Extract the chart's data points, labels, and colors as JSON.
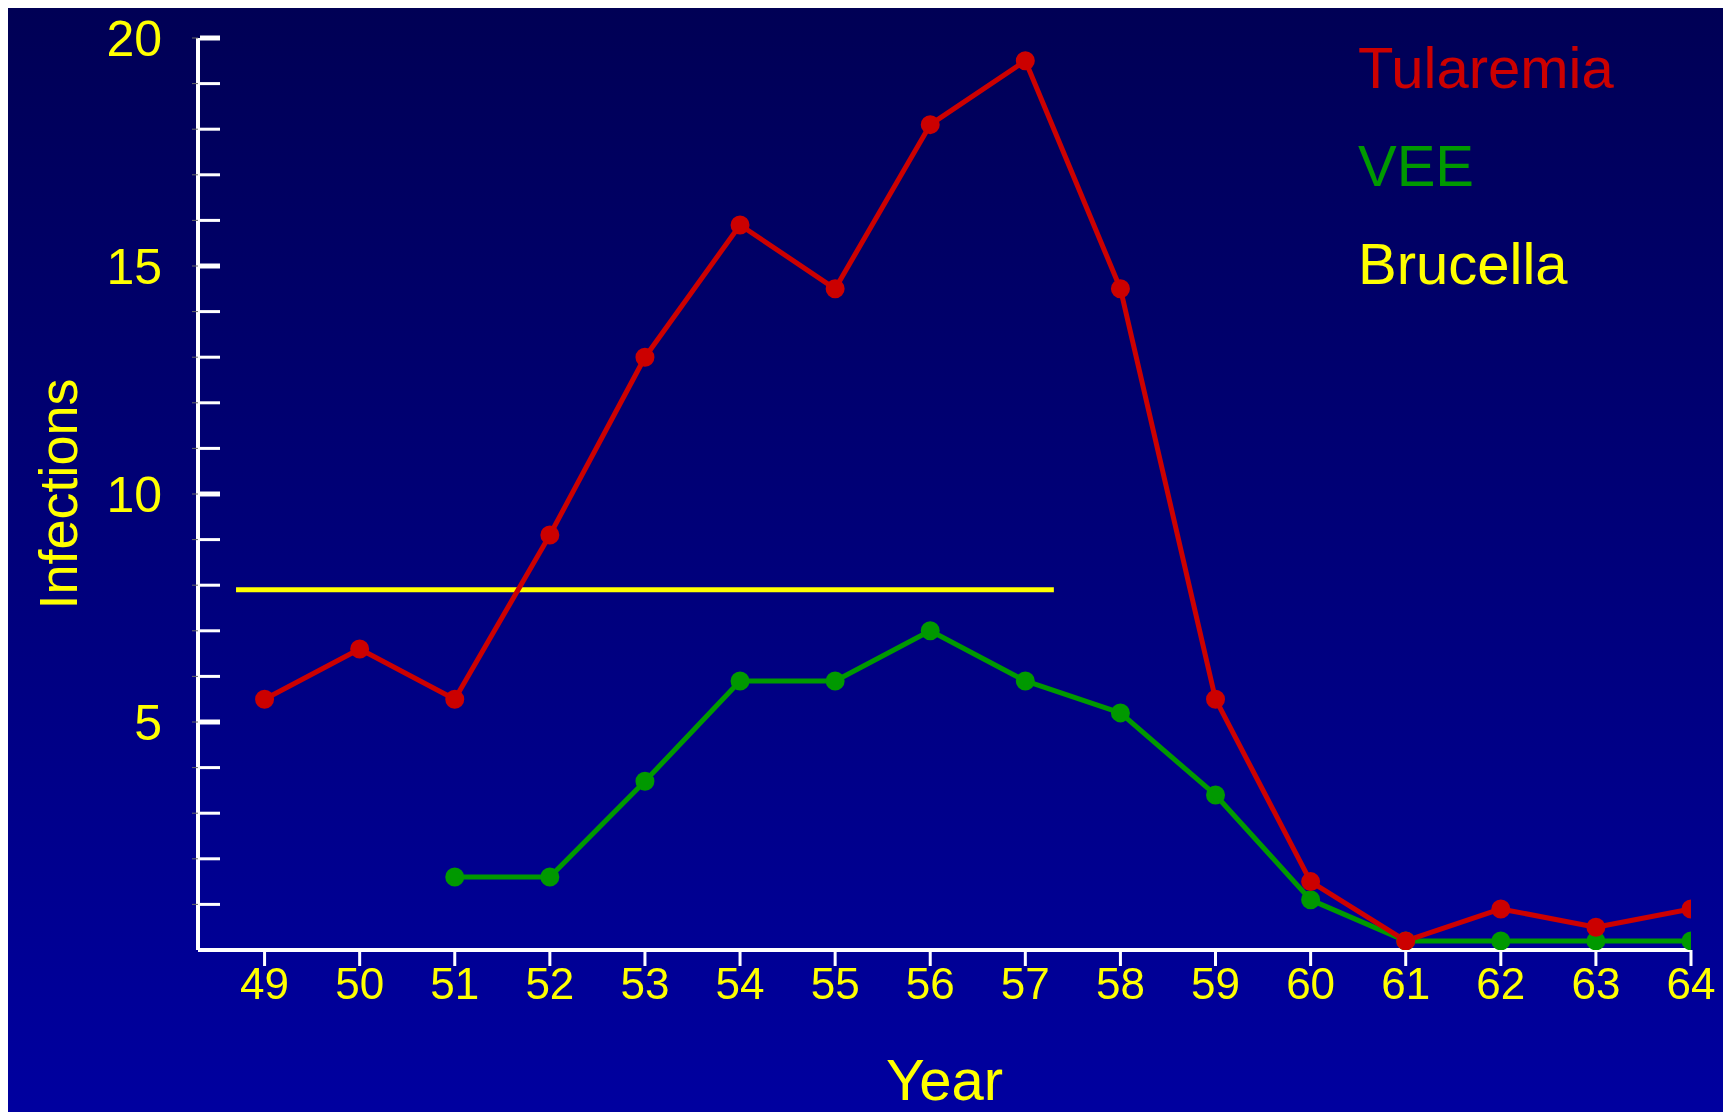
{
  "chart_data": {
    "type": "line",
    "xlabel": "Year",
    "ylabel": "Infections",
    "xlim": [
      48.3,
      64
    ],
    "xticks": [
      49,
      50,
      51,
      52,
      53,
      54,
      55,
      56,
      57,
      58,
      59,
      60,
      61,
      62,
      63,
      64
    ],
    "ylim": [
      0,
      20
    ],
    "yticks": [
      {
        "value": 1,
        "label": null
      },
      {
        "value": 2,
        "label": null
      },
      {
        "value": 3,
        "label": null
      },
      {
        "value": 4,
        "label": null
      },
      5,
      {
        "value": 6,
        "label": null
      },
      {
        "value": 7,
        "label": null
      },
      {
        "value": 8,
        "label": null
      },
      {
        "value": 9,
        "label": null
      },
      10,
      {
        "value": 11,
        "label": null
      },
      {
        "value": 12,
        "label": null
      },
      {
        "value": 13,
        "label": null
      },
      {
        "value": 14,
        "label": null
      },
      15,
      {
        "value": 16,
        "label": null
      },
      {
        "value": 17,
        "label": null
      },
      {
        "value": 18,
        "label": null
      },
      {
        "value": 19,
        "label": null
      },
      20
    ],
    "legend": "top right",
    "grid": false,
    "marker": "circle",
    "line_style": "solid",
    "series": [
      {
        "name": "Tularemia",
        "color": "#cc0000",
        "x": [
          49,
          50,
          51,
          52,
          53,
          54,
          55,
          56,
          57,
          58,
          59,
          60,
          61,
          62,
          63,
          64
        ],
        "values": [
          5.5,
          6.6,
          5.5,
          9.1,
          13,
          15.9,
          14.5,
          18.1,
          19.5,
          14.5,
          5.5,
          1.5,
          0.2,
          0.9,
          0.5,
          0.9
        ]
      },
      {
        "name": "VEE",
        "color": "#009900",
        "x": [
          51,
          52,
          53,
          54,
          55,
          56,
          57,
          58,
          59,
          60,
          61,
          62,
          63,
          64
        ],
        "values": [
          1.6,
          1.6,
          3.7,
          5.9,
          5.9,
          7,
          5.9,
          5.2,
          3.4,
          1.1,
          0.2,
          0.2,
          0.2,
          0.2
        ]
      },
      {
        "name": "Brucella",
        "color": "#ffff00",
        "marker": "none",
        "x": [
          48.7,
          57.3
        ],
        "values": [
          7.9,
          7.9
        ]
      }
    ]
  }
}
